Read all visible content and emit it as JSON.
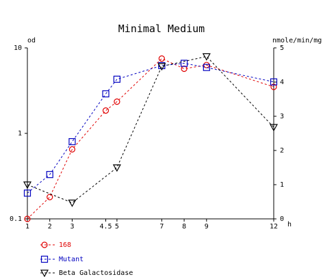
{
  "chart_data": {
    "type": "line",
    "title": "Minimal Medium",
    "xlabel": "h",
    "ylabel_left": "od",
    "ylabel_right": "nmole/min/mg",
    "x_ticks": [
      1,
      2,
      3,
      4.5,
      5,
      7,
      8,
      9,
      12
    ],
    "x_tick_labels": [
      "1",
      "2",
      "3",
      "4.5",
      "5",
      "7",
      "8",
      "9",
      "12"
    ],
    "xlim": [
      1,
      12
    ],
    "y_left_scale": "log",
    "y_left_ticks": [
      0.1,
      1,
      10
    ],
    "y_left_tick_labels": [
      "0.1",
      "1",
      "10"
    ],
    "ylim_left": [
      0.1,
      10
    ],
    "y_right_ticks": [
      0,
      1,
      2,
      3,
      4,
      5
    ],
    "y_right_tick_labels": [
      "0",
      "1",
      "2",
      "3",
      "4",
      "5"
    ],
    "ylim_right": [
      0,
      5
    ],
    "grid": false,
    "legend_position": "bottom-left",
    "series": [
      {
        "name": "168",
        "axis": "left",
        "color": "#e00000",
        "marker": "circle",
        "x": [
          1,
          2,
          3,
          4.5,
          5,
          7,
          8,
          9,
          12
        ],
        "values": [
          0.1,
          0.18,
          0.65,
          1.85,
          2.35,
          7.5,
          5.7,
          6.3,
          3.5
        ]
      },
      {
        "name": "Mutant",
        "axis": "left",
        "color": "#0000c0",
        "marker": "square",
        "x": [
          1,
          2,
          3,
          4.5,
          5,
          7,
          8,
          9,
          12
        ],
        "values": [
          0.2,
          0.33,
          0.8,
          2.9,
          4.3,
          6.2,
          6.6,
          5.9,
          4.0
        ]
      },
      {
        "name": "Beta Galactosidase",
        "axis": "right",
        "color": "#000000",
        "marker": "triangle-down",
        "x": [
          1,
          3,
          5,
          7,
          9,
          12
        ],
        "values": [
          1.0,
          0.47,
          1.5,
          4.46,
          4.75,
          2.68
        ]
      }
    ]
  }
}
